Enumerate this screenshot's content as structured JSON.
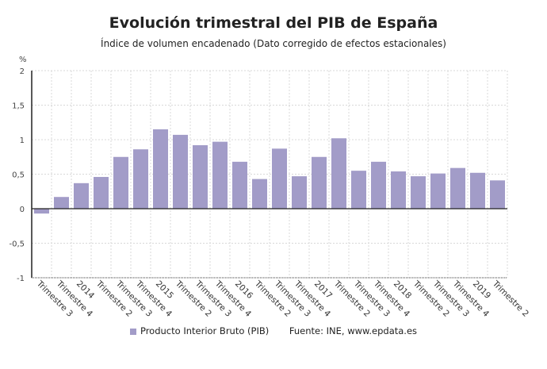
{
  "chart_data": {
    "type": "bar",
    "title": "Evolución trimestral del PIB de España",
    "subtitle": "Índice de volumen encadenado (Dato corregido de efectos estacionales)",
    "ylabel": "%",
    "ylim": [
      -1,
      2
    ],
    "yticks": [
      2,
      1.5,
      1,
      0.5,
      0,
      -0.5,
      -1
    ],
    "ytick_labels": [
      "2",
      "1,5",
      "1",
      "0,5",
      "0",
      "-0,5",
      "-1"
    ],
    "grid": true,
    "categories": [
      "Trimestre 3",
      "Trimestre 4",
      "2014",
      "Trimestre 2",
      "Trimestre 3",
      "Trimestre 4",
      "2015",
      "Trimestre 2",
      "Trimestre 3",
      "Trimestre 4",
      "2016",
      "Trimestre 2",
      "Trimestre 3",
      "Trimestre 4",
      "2017",
      "Trimestre 2",
      "Trimestre 3",
      "Trimestre 4",
      "2018",
      "Trimestre 2",
      "Trimestre 3",
      "Trimestre 4",
      "2019",
      "Trimestre 2"
    ],
    "series": [
      {
        "name": "Producto Interior Bruto (PIB)",
        "color": "#a29cc8",
        "values": [
          -0.07,
          0.17,
          0.37,
          0.46,
          0.75,
          0.86,
          1.15,
          1.07,
          0.92,
          0.97,
          0.68,
          0.43,
          0.87,
          0.47,
          0.75,
          1.02,
          0.55,
          0.68,
          0.54,
          0.47,
          0.51,
          0.59,
          0.52,
          0.41
        ]
      }
    ],
    "legend_position": "bottom",
    "source": "Fuente: INE, www.epdata.es"
  }
}
